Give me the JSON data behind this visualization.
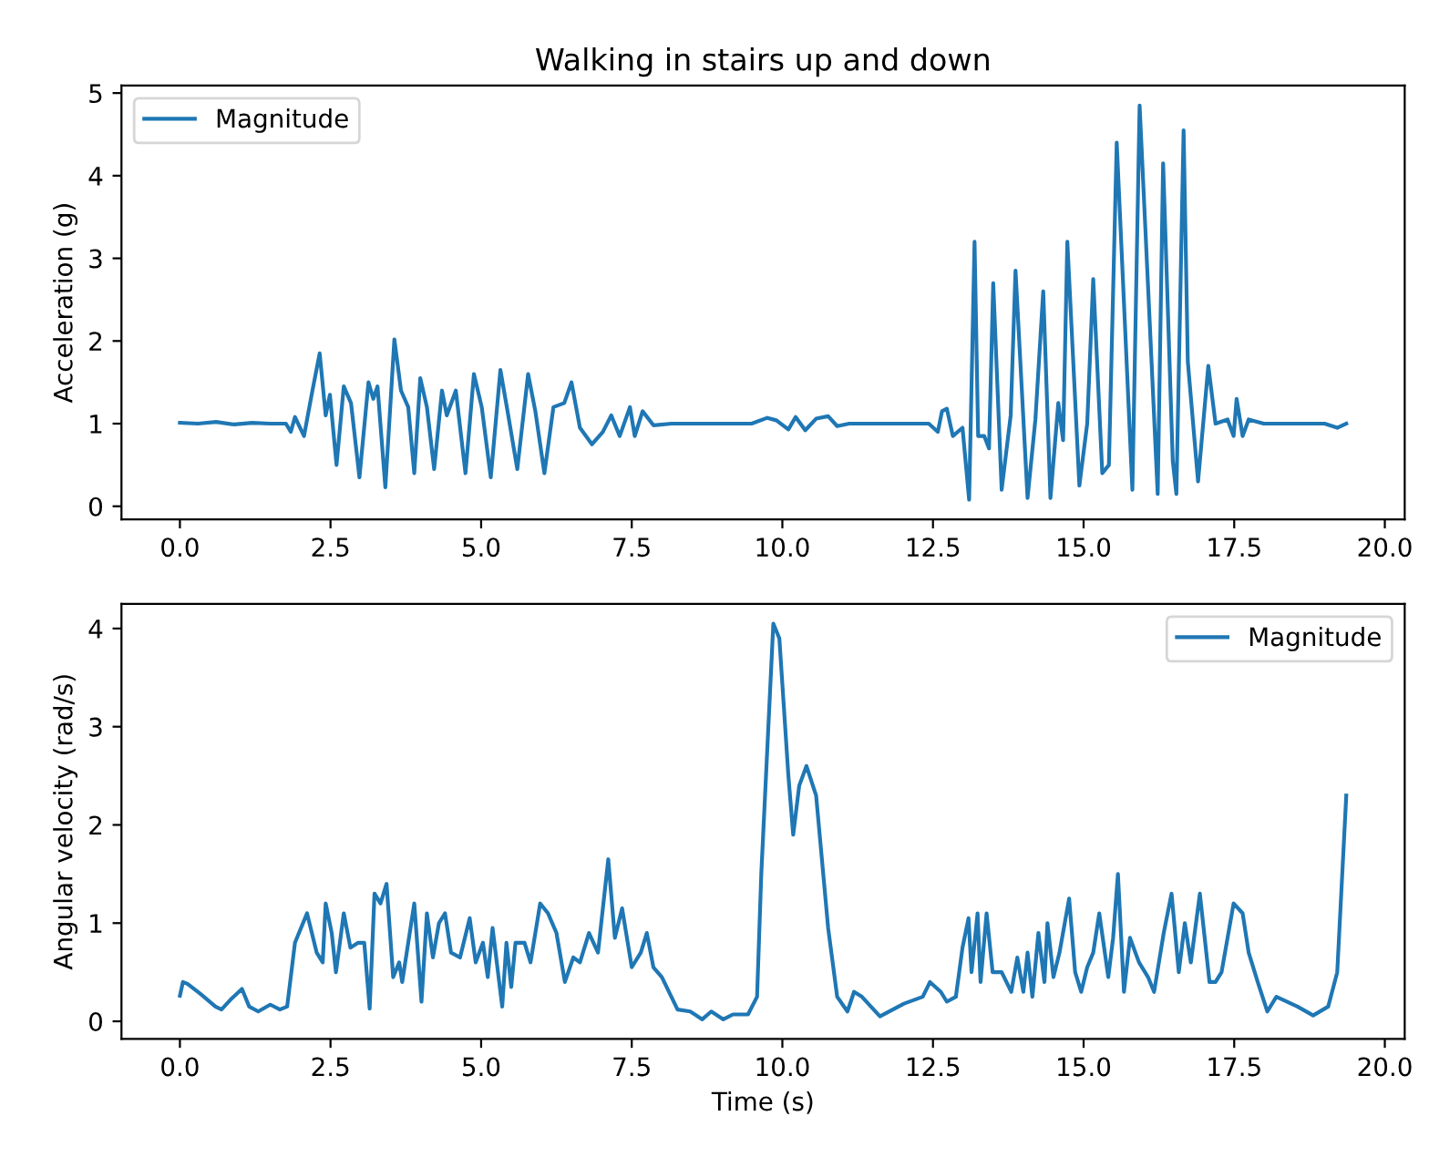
{
  "chart_data": [
    {
      "type": "line",
      "title": "Walking in stairs up and down",
      "ylabel": "Acceleration (g)",
      "xlim": [
        -0.97,
        20.33
      ],
      "xticks": [
        {
          "value": 0,
          "label": "0.0"
        },
        {
          "value": 2.5,
          "label": "2.5"
        },
        {
          "value": 5,
          "label": "5.0"
        },
        {
          "value": 7.5,
          "label": "7.5"
        },
        {
          "value": 10,
          "label": "10.0"
        },
        {
          "value": 12.5,
          "label": "12.5"
        },
        {
          "value": 15,
          "label": "15.0"
        },
        {
          "value": 17.5,
          "label": "17.5"
        },
        {
          "value": 20,
          "label": "20.0"
        }
      ],
      "ylim": [
        -0.16,
        5.09
      ],
      "yticks": [
        0,
        1,
        2,
        3,
        4,
        5
      ],
      "legend": "top left",
      "grid": false,
      "series": [
        {
          "name": "Magnitude",
          "color": "#1f77b4",
          "x": [
            0.0,
            0.3,
            0.6,
            0.9,
            1.2,
            1.5,
            1.76,
            1.84,
            1.91,
            2.06,
            2.2,
            2.32,
            2.42,
            2.49,
            2.6,
            2.72,
            2.84,
            2.98,
            3.13,
            3.21,
            3.28,
            3.41,
            3.56,
            3.67,
            3.79,
            3.89,
            3.99,
            4.1,
            4.22,
            4.35,
            4.43,
            4.58,
            4.74,
            4.88,
            5.01,
            5.16,
            5.32,
            5.45,
            5.6,
            5.78,
            5.9,
            6.05,
            6.2,
            6.38,
            6.5,
            6.64,
            6.84,
            7.02,
            7.16,
            7.3,
            7.47,
            7.55,
            7.68,
            7.86,
            8.16,
            8.6,
            9.09,
            9.49,
            9.75,
            9.9,
            10.1,
            10.22,
            10.38,
            10.56,
            10.76,
            10.91,
            11.11,
            11.6,
            12.0,
            12.43,
            12.58,
            12.65,
            12.73,
            12.83,
            12.99,
            13.1,
            13.19,
            13.25,
            13.35,
            13.43,
            13.5,
            13.64,
            13.79,
            13.87,
            14.07,
            14.2,
            14.33,
            14.45,
            14.58,
            14.66,
            14.73,
            14.93,
            15.06,
            15.16,
            15.31,
            15.42,
            15.55,
            15.81,
            15.93,
            16.23,
            16.32,
            16.48,
            16.54,
            16.66,
            16.73,
            16.9,
            17.07,
            17.19,
            17.39,
            17.49,
            17.54,
            17.64,
            17.74,
            17.99,
            18.5,
            19.0,
            19.21,
            19.36
          ],
          "values": [
            1.01,
            1.0,
            1.02,
            0.99,
            1.01,
            1.0,
            1.0,
            0.9,
            1.08,
            0.85,
            1.4,
            1.85,
            1.1,
            1.35,
            0.5,
            1.45,
            1.25,
            0.35,
            1.5,
            1.3,
            1.45,
            0.23,
            2.02,
            1.4,
            1.2,
            0.4,
            1.55,
            1.2,
            0.45,
            1.4,
            1.1,
            1.4,
            0.4,
            1.6,
            1.2,
            0.35,
            1.65,
            1.1,
            0.45,
            1.6,
            1.15,
            0.4,
            1.2,
            1.25,
            1.5,
            0.95,
            0.75,
            0.9,
            1.1,
            0.85,
            1.2,
            0.85,
            1.15,
            0.98,
            1.0,
            1.0,
            1.0,
            1.0,
            1.07,
            1.04,
            0.93,
            1.08,
            0.92,
            1.06,
            1.09,
            0.97,
            1.0,
            1.0,
            1.0,
            1.0,
            0.9,
            1.15,
            1.18,
            0.85,
            0.95,
            0.08,
            3.2,
            0.85,
            0.85,
            0.7,
            2.7,
            0.2,
            1.1,
            2.85,
            0.1,
            1.05,
            2.6,
            0.1,
            1.25,
            0.8,
            3.2,
            0.25,
            1.0,
            2.75,
            0.4,
            0.5,
            4.4,
            0.2,
            4.85,
            0.15,
            4.15,
            0.55,
            0.15,
            4.55,
            1.75,
            0.3,
            1.7,
            1.0,
            1.05,
            0.85,
            1.3,
            0.85,
            1.05,
            1.0,
            1.0,
            1.0,
            0.95,
            1.0
          ]
        }
      ]
    },
    {
      "type": "line",
      "xlabel": "Time (s)",
      "ylabel": "Angular velocity (rad/s)",
      "xlim": [
        -0.97,
        20.33
      ],
      "xticks": [
        {
          "value": 0,
          "label": "0.0"
        },
        {
          "value": 2.5,
          "label": "2.5"
        },
        {
          "value": 5,
          "label": "5.0"
        },
        {
          "value": 7.5,
          "label": "7.5"
        },
        {
          "value": 10,
          "label": "10.0"
        },
        {
          "value": 12.5,
          "label": "12.5"
        },
        {
          "value": 15,
          "label": "15.0"
        },
        {
          "value": 17.5,
          "label": "17.5"
        },
        {
          "value": 20,
          "label": "20.0"
        }
      ],
      "ylim": [
        -0.18,
        4.25
      ],
      "yticks": [
        0,
        1,
        2,
        3,
        4
      ],
      "legend": "top right",
      "grid": false,
      "series": [
        {
          "name": "Magnitude",
          "color": "#1f77b4",
          "x": [
            0.0,
            0.05,
            0.13,
            0.34,
            0.59,
            0.69,
            0.84,
            1.03,
            1.15,
            1.3,
            1.5,
            1.66,
            1.78,
            1.91,
            2.11,
            2.27,
            2.37,
            2.42,
            2.52,
            2.59,
            2.72,
            2.83,
            2.96,
            3.06,
            3.15,
            3.23,
            3.33,
            3.43,
            3.54,
            3.64,
            3.69,
            3.79,
            3.89,
            4.01,
            4.1,
            4.2,
            4.3,
            4.4,
            4.5,
            4.65,
            4.81,
            4.91,
            5.03,
            5.11,
            5.19,
            5.35,
            5.42,
            5.5,
            5.57,
            5.72,
            5.82,
            5.98,
            6.11,
            6.25,
            6.39,
            6.53,
            6.64,
            6.79,
            6.94,
            7.11,
            7.22,
            7.34,
            7.5,
            7.65,
            7.75,
            7.86,
            8.0,
            8.26,
            8.47,
            8.67,
            8.82,
            9.02,
            9.18,
            9.43,
            9.58,
            9.65,
            9.85,
            9.95,
            10.1,
            10.18,
            10.28,
            10.4,
            10.56,
            10.76,
            10.91,
            11.08,
            11.19,
            11.32,
            11.62,
            12.02,
            12.33,
            12.45,
            12.63,
            12.73,
            12.88,
            12.99,
            13.09,
            13.14,
            13.24,
            13.29,
            13.39,
            13.49,
            13.64,
            13.8,
            13.9,
            14.0,
            14.07,
            14.15,
            14.25,
            14.35,
            14.4,
            14.5,
            14.6,
            14.76,
            14.86,
            14.96,
            15.06,
            15.16,
            15.26,
            15.41,
            15.49,
            15.57,
            15.67,
            15.77,
            15.92,
            16.07,
            16.17,
            16.33,
            16.46,
            16.58,
            16.68,
            16.78,
            16.93,
            17.09,
            17.19,
            17.29,
            17.49,
            17.64,
            17.74,
            17.89,
            18.05,
            18.2,
            18.55,
            18.81,
            19.06,
            19.21,
            19.36
          ],
          "values": [
            0.26,
            0.4,
            0.38,
            0.28,
            0.15,
            0.12,
            0.22,
            0.33,
            0.15,
            0.1,
            0.17,
            0.12,
            0.15,
            0.8,
            1.1,
            0.7,
            0.6,
            1.2,
            0.9,
            0.5,
            1.1,
            0.75,
            0.8,
            0.8,
            0.13,
            1.3,
            1.2,
            1.4,
            0.45,
            0.6,
            0.4,
            0.8,
            1.2,
            0.2,
            1.1,
            0.65,
            1.0,
            1.1,
            0.7,
            0.65,
            1.05,
            0.6,
            0.8,
            0.45,
            0.95,
            0.15,
            0.8,
            0.35,
            0.8,
            0.8,
            0.6,
            1.2,
            1.1,
            0.9,
            0.4,
            0.65,
            0.6,
            0.9,
            0.7,
            1.65,
            0.85,
            1.15,
            0.55,
            0.7,
            0.9,
            0.55,
            0.45,
            0.12,
            0.1,
            0.02,
            0.1,
            0.02,
            0.07,
            0.07,
            0.25,
            1.5,
            4.05,
            3.9,
            2.5,
            1.9,
            2.4,
            2.6,
            2.3,
            0.95,
            0.25,
            0.1,
            0.3,
            0.25,
            0.05,
            0.18,
            0.25,
            0.4,
            0.3,
            0.2,
            0.25,
            0.75,
            1.05,
            0.5,
            1.1,
            0.4,
            1.1,
            0.5,
            0.5,
            0.3,
            0.65,
            0.3,
            0.7,
            0.25,
            0.9,
            0.4,
            1.0,
            0.45,
            0.7,
            1.25,
            0.5,
            0.3,
            0.55,
            0.7,
            1.1,
            0.45,
            0.85,
            1.5,
            0.3,
            0.85,
            0.6,
            0.45,
            0.3,
            0.9,
            1.3,
            0.5,
            1.0,
            0.6,
            1.3,
            0.4,
            0.4,
            0.5,
            1.2,
            1.1,
            0.7,
            0.4,
            0.1,
            0.25,
            0.15,
            0.06,
            0.15,
            0.5,
            2.3
          ]
        }
      ]
    }
  ]
}
